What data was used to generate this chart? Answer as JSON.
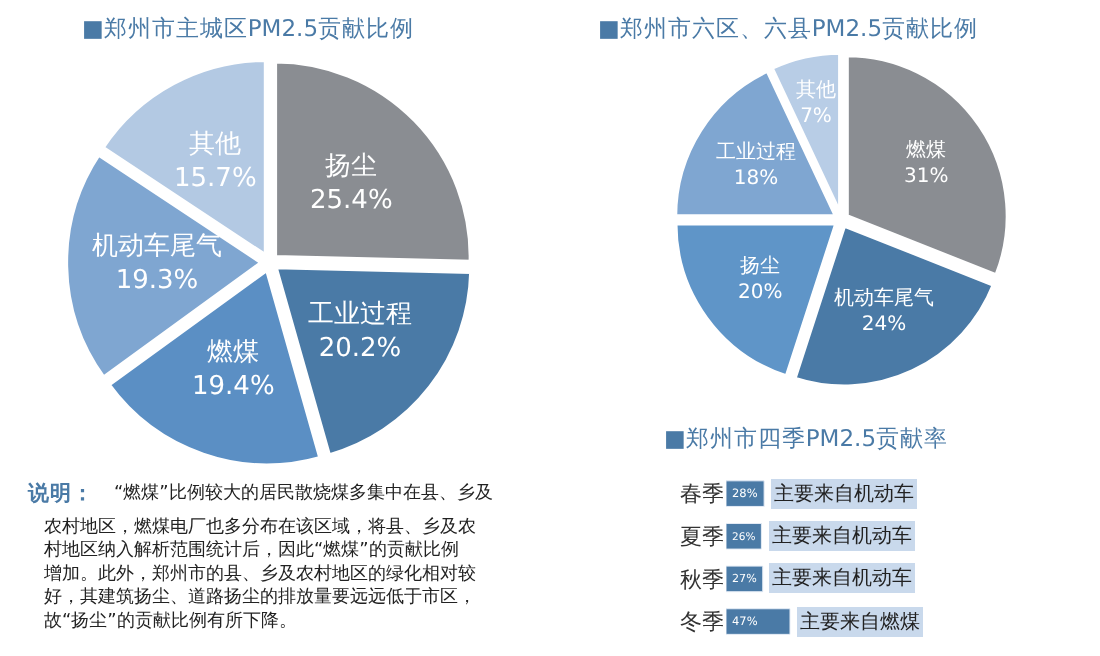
{
  "chart_data": [
    {
      "type": "pie",
      "title": "■郑州市主城区PM2.5贡献比例",
      "categories": [
        "扬尘",
        "工业过程",
        "燃煤",
        "机动车尾气",
        "其他"
      ],
      "values": [
        25.4,
        20.2,
        19.4,
        19.3,
        15.7
      ],
      "value_labels": [
        "25.4%",
        "20.2%",
        "19.4%",
        "19.3%",
        "15.7%"
      ],
      "colors": [
        "#8a8d92",
        "#4a7aa6",
        "#5b8fc4",
        "#7fa6d1",
        "#b3c9e3"
      ]
    },
    {
      "type": "pie",
      "title": "■郑州市六区、六县PM2.5贡献比例",
      "categories": [
        "燃煤",
        "机动车尾气",
        "扬尘",
        "工业过程",
        "其他"
      ],
      "values": [
        31,
        24,
        20,
        18,
        7
      ],
      "value_labels": [
        "31%",
        "24%",
        "20%",
        "18%",
        "7%"
      ],
      "colors": [
        "#8a8d92",
        "#4a7aa6",
        "#5f95c8",
        "#7fa6d1",
        "#b8cde6"
      ]
    },
    {
      "type": "bar",
      "orientation": "horizontal",
      "title": "■郑州市四季PM2.5贡献率",
      "categories": [
        "春季",
        "夏季",
        "秋季",
        "冬季"
      ],
      "values": [
        28,
        26,
        27,
        47
      ],
      "value_labels": [
        "28%",
        "26%",
        "27%",
        "47%"
      ],
      "color": "#4a7aa6",
      "tick_labels": "y",
      "annotations": [
        "主要来自机动车",
        "主要来自机动车",
        "主要来自机动车",
        "主要来自燃煤"
      ]
    },
    {
      "type": "other",
      "title": "说明：",
      "annotations": [
        "“燃煤”比例较大的居民散烧煤多集中在县、乡及农村地区，燃煤电厂也多分布在该区域，将县、乡及农村地区纳入解析范围统计后，因此“燃煤”的贡献比例增加。此外，郑州市的县、乡及农村地区的绿化相对较好，其建筑扬尘、道路扬尘的排放量要远远低于市区，故“扬尘”的贡献比例有所下降。"
      ]
    }
  ]
}
